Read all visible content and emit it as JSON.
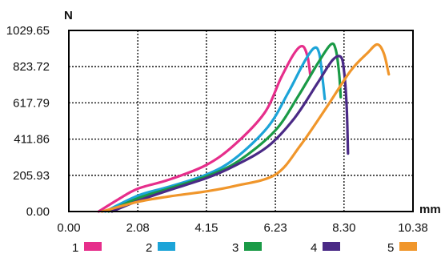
{
  "chart_data": {
    "type": "line",
    "y_unit": "N",
    "x_unit": "mm",
    "xlim": [
      0,
      10.38
    ],
    "ylim": [
      0,
      1029.65
    ],
    "x_ticks": [
      "0.00",
      "2.08",
      "4.15",
      "6.23",
      "8.30",
      "10.38"
    ],
    "x_tick_values": [
      0,
      2.08,
      4.15,
      6.23,
      8.3,
      10.38
    ],
    "y_ticks": [
      "0.00",
      "205.93",
      "411.86",
      "617.79",
      "823.72",
      "1029.65"
    ],
    "y_tick_values": [
      0,
      205.93,
      411.86,
      617.79,
      823.72,
      1029.65
    ],
    "grid": true,
    "legend_position": "bottom",
    "series": [
      {
        "name": "1",
        "color": "#e62e8b",
        "x": [
          0.9,
          1.5,
          2.08,
          3.0,
          4.15,
          5.0,
          5.9,
          6.4,
          6.8,
          7.05,
          7.2,
          7.28
        ],
        "y": [
          0,
          70,
          130,
          180,
          265,
          380,
          560,
          760,
          900,
          940,
          880,
          780
        ]
      },
      {
        "name": "2",
        "color": "#1ca4d8",
        "x": [
          1.1,
          2.08,
          3.0,
          4.15,
          5.0,
          6.0,
          6.6,
          7.1,
          7.4,
          7.55,
          7.65,
          7.72
        ],
        "y": [
          0,
          90,
          140,
          210,
          300,
          480,
          670,
          850,
          930,
          900,
          760,
          640
        ]
      },
      {
        "name": "3",
        "color": "#1a9a46",
        "x": [
          1.2,
          2.08,
          3.0,
          4.15,
          5.1,
          6.2,
          6.9,
          7.5,
          7.9,
          8.05,
          8.15,
          8.2
        ],
        "y": [
          0,
          75,
          130,
          200,
          285,
          455,
          650,
          840,
          950,
          920,
          790,
          650
        ]
      },
      {
        "name": "4",
        "color": "#4a2a86",
        "x": [
          1.3,
          2.08,
          3.0,
          4.15,
          5.0,
          6.0,
          6.8,
          7.5,
          7.95,
          8.2,
          8.3,
          8.38,
          8.42
        ],
        "y": [
          0,
          60,
          120,
          190,
          260,
          370,
          530,
          730,
          860,
          880,
          800,
          600,
          330
        ]
      },
      {
        "name": "5",
        "color": "#f0962b",
        "x": [
          1.0,
          2.08,
          3.0,
          4.15,
          5.0,
          6.23,
          7.0,
          7.8,
          8.5,
          9.0,
          9.3,
          9.5,
          9.65
        ],
        "y": [
          0,
          55,
          85,
          115,
          145,
          210,
          380,
          600,
          800,
          900,
          950,
          900,
          780
        ]
      }
    ]
  }
}
